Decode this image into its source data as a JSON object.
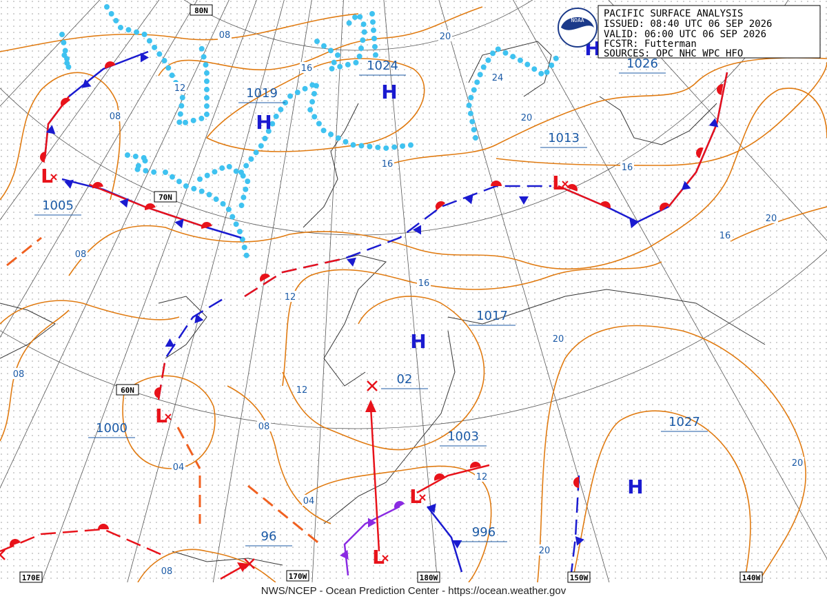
{
  "header": {
    "lines": [
      "PACIFIC SURFACE ANALYSIS",
      "ISSUED: 08:40 UTC 06 SEP 2026",
      "VALID:  06:00 UTC 06 SEP 2026",
      "FCSTR:  Futterman",
      "SOURCES: OPC NHC WPC HFO"
    ],
    "logo": "NOAA"
  },
  "grid_labels": [
    "80N",
    "70N",
    "60N",
    "170E",
    "170W",
    "180W",
    "150W",
    "140W"
  ],
  "high_centers": [
    "H",
    "H",
    "H",
    "H",
    "H"
  ],
  "low_centers": [
    "L",
    "L",
    "L",
    "L",
    "L"
  ],
  "pressure_labels": [
    "1024",
    "1019",
    "1026",
    "1013",
    "1005",
    "1017",
    "02",
    "1000",
    "1003",
    "1027",
    "996",
    "96"
  ],
  "isobar_labels": [
    "08",
    "12",
    "16",
    "20",
    "24",
    "08",
    "20",
    "16",
    "16",
    "20",
    "16",
    "08",
    "16",
    "12",
    "20",
    "08",
    "12",
    "08",
    "04",
    "12",
    "20",
    "04",
    "20",
    "08"
  ],
  "footer": "NWS/NCEP - Ocean Prediction Center - https://ocean.weather.gov"
}
